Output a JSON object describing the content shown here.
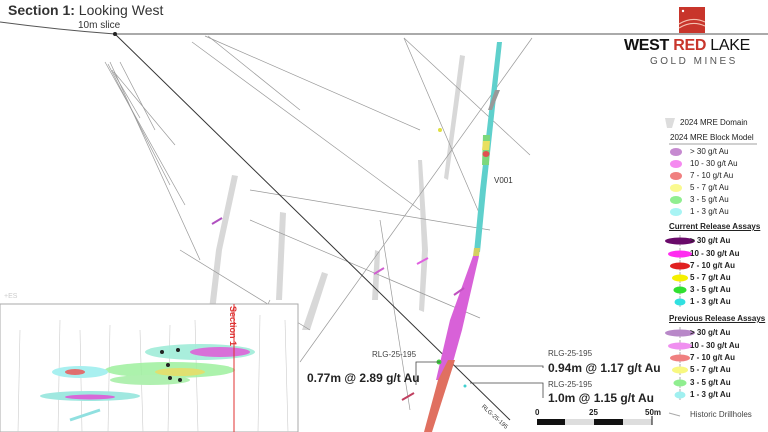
{
  "title": {
    "bold": "Section 1:",
    "rest": "Looking West"
  },
  "slice_label": "10m slice",
  "logo": {
    "west": "WEST",
    "red": "RED",
    "lake": "LAKE",
    "sub": "GOLD MINES",
    "brand_color": "#c8352b"
  },
  "vein_label": "V001",
  "inset": {
    "section_label": "Section 1",
    "corner_label": "+ES"
  },
  "legend": {
    "domain": "2024 MRE Domain",
    "block_model": {
      "header": "2024 MRE Block Model",
      "items": [
        {
          "label": "> 30 g/t Au",
          "color": "#c68ad0"
        },
        {
          "label": "10 - 30 g/t Au",
          "color": "#f58af0"
        },
        {
          "label": "7 - 10 g/t Au",
          "color": "#f08080"
        },
        {
          "label": "5 - 7 g/t Au",
          "color": "#fafa90"
        },
        {
          "label": "3 - 5 g/t Au",
          "color": "#90ee90"
        },
        {
          "label": "1 - 3 g/t Au",
          "color": "#a8f4f4"
        }
      ]
    },
    "current": {
      "header": "Current Release Assays",
      "items": [
        {
          "label": "> 30 g/t Au",
          "color": "#6a0a6a"
        },
        {
          "label": "10 - 30 g/t Au",
          "color": "#ff2df0"
        },
        {
          "label": "7 - 10 g/t Au",
          "color": "#e02020"
        },
        {
          "label": "5 - 7 g/t Au",
          "color": "#f5f000"
        },
        {
          "label": "3 - 5 g/t Au",
          "color": "#30e030"
        },
        {
          "label": "1 - 3 g/t Au",
          "color": "#30e0e0"
        }
      ]
    },
    "previous": {
      "header": "Previous Release Assays",
      "items": [
        {
          "label": "> 30 g/t Au",
          "color": "#b888c8"
        },
        {
          "label": "10 - 30 g/t Au",
          "color": "#f090f0"
        },
        {
          "label": "7 - 10 g/t Au",
          "color": "#f08080"
        },
        {
          "label": "5 - 7 g/t Au",
          "color": "#f8f880"
        },
        {
          "label": "3 - 5 g/t Au",
          "color": "#90ee90"
        },
        {
          "label": "1 - 3 g/t Au",
          "color": "#a0f0f0"
        }
      ]
    },
    "historic": "Historic Drillholes"
  },
  "callouts": [
    {
      "hole": "RLG-25-195",
      "value": "0.77m @ 2.89 g/t Au"
    },
    {
      "hole": "RLG-25-195",
      "value": "0.94m @ 1.17 g/t Au"
    },
    {
      "hole": "RLG-25-195",
      "value": "1.0m @ 1.15 g/t Au"
    }
  ],
  "drillhole_label": "RLG-25-195",
  "scale": {
    "ticks": [
      "0",
      "25",
      "50m"
    ]
  }
}
